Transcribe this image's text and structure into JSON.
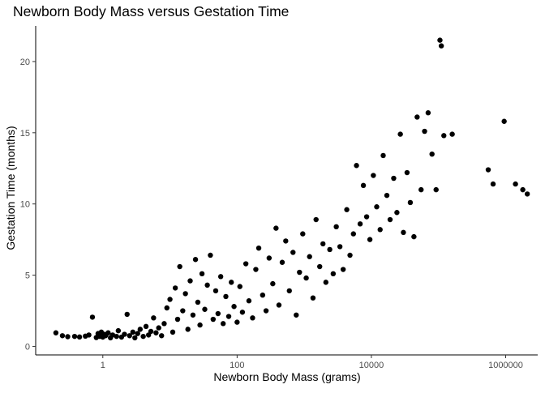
{
  "chart_data": {
    "type": "scatter",
    "title": "Newborn Body Mass versus Gestation Time",
    "xlabel": "Newborn Body Mass (grams)",
    "ylabel": "Gestation Time (months)",
    "x_scale": "log10",
    "xlim": [
      0.1,
      3000000
    ],
    "ylim": [
      -0.6,
      22.5
    ],
    "x_ticks": [
      1,
      100,
      10000,
      1000000
    ],
    "x_tick_labels": [
      "1",
      "100",
      "10000",
      "1000000"
    ],
    "y_ticks": [
      0,
      5,
      10,
      15,
      20
    ],
    "y_tick_labels": [
      "0",
      "5",
      "10",
      "15",
      "20"
    ],
    "grid": false,
    "legend": "none",
    "point_color": "#000000",
    "points": [
      {
        "x": 0.2,
        "y": 0.95
      },
      {
        "x": 0.25,
        "y": 0.75
      },
      {
        "x": 0.3,
        "y": 0.68
      },
      {
        "x": 0.38,
        "y": 0.7
      },
      {
        "x": 0.45,
        "y": 0.66
      },
      {
        "x": 0.55,
        "y": 0.72
      },
      {
        "x": 0.62,
        "y": 0.8
      },
      {
        "x": 0.7,
        "y": 2.05
      },
      {
        "x": 0.8,
        "y": 0.62
      },
      {
        "x": 0.85,
        "y": 0.9
      },
      {
        "x": 0.9,
        "y": 0.7
      },
      {
        "x": 0.95,
        "y": 1.0
      },
      {
        "x": 1.0,
        "y": 0.65
      },
      {
        "x": 1.05,
        "y": 0.85
      },
      {
        "x": 1.1,
        "y": 0.75
      },
      {
        "x": 1.2,
        "y": 0.95
      },
      {
        "x": 1.3,
        "y": 0.6
      },
      {
        "x": 1.4,
        "y": 0.8
      },
      {
        "x": 1.6,
        "y": 0.7
      },
      {
        "x": 1.7,
        "y": 1.1
      },
      {
        "x": 1.9,
        "y": 0.65
      },
      {
        "x": 2.1,
        "y": 0.85
      },
      {
        "x": 2.3,
        "y": 2.25
      },
      {
        "x": 2.5,
        "y": 0.75
      },
      {
        "x": 2.8,
        "y": 1.0
      },
      {
        "x": 3.0,
        "y": 0.6
      },
      {
        "x": 3.3,
        "y": 0.9
      },
      {
        "x": 3.6,
        "y": 1.2
      },
      {
        "x": 4.0,
        "y": 0.7
      },
      {
        "x": 4.4,
        "y": 1.4
      },
      {
        "x": 4.8,
        "y": 0.8
      },
      {
        "x": 5.2,
        "y": 1.05
      },
      {
        "x": 5.7,
        "y": 2.0
      },
      {
        "x": 6.2,
        "y": 0.95
      },
      {
        "x": 6.8,
        "y": 1.3
      },
      {
        "x": 7.5,
        "y": 0.75
      },
      {
        "x": 8.2,
        "y": 1.6
      },
      {
        "x": 9.0,
        "y": 2.7
      },
      {
        "x": 10.0,
        "y": 3.3
      },
      {
        "x": 11.0,
        "y": 1.0
      },
      {
        "x": 12.0,
        "y": 4.1
      },
      {
        "x": 13.0,
        "y": 1.9
      },
      {
        "x": 14.0,
        "y": 5.6
      },
      {
        "x": 15.5,
        "y": 2.5
      },
      {
        "x": 17.0,
        "y": 3.7
      },
      {
        "x": 18.5,
        "y": 1.2
      },
      {
        "x": 20.0,
        "y": 4.6
      },
      {
        "x": 22.0,
        "y": 2.2
      },
      {
        "x": 24.0,
        "y": 6.1
      },
      {
        "x": 26.0,
        "y": 3.1
      },
      {
        "x": 28.0,
        "y": 1.5
      },
      {
        "x": 30.0,
        "y": 5.1
      },
      {
        "x": 33.0,
        "y": 2.6
      },
      {
        "x": 36.0,
        "y": 4.3
      },
      {
        "x": 40.0,
        "y": 6.4
      },
      {
        "x": 44.0,
        "y": 1.9
      },
      {
        "x": 48.0,
        "y": 3.9
      },
      {
        "x": 52.0,
        "y": 2.3
      },
      {
        "x": 57.0,
        "y": 4.9
      },
      {
        "x": 62.0,
        "y": 1.6
      },
      {
        "x": 68.0,
        "y": 3.5
      },
      {
        "x": 75.0,
        "y": 2.1
      },
      {
        "x": 82.0,
        "y": 4.5
      },
      {
        "x": 90.0,
        "y": 2.8
      },
      {
        "x": 100.0,
        "y": 1.7
      },
      {
        "x": 110.0,
        "y": 4.2
      },
      {
        "x": 120.0,
        "y": 2.4
      },
      {
        "x": 135.0,
        "y": 5.8
      },
      {
        "x": 150.0,
        "y": 3.2
      },
      {
        "x": 170.0,
        "y": 2.0
      },
      {
        "x": 190.0,
        "y": 5.4
      },
      {
        "x": 210.0,
        "y": 6.9
      },
      {
        "x": 240.0,
        "y": 3.6
      },
      {
        "x": 270.0,
        "y": 2.5
      },
      {
        "x": 300.0,
        "y": 6.2
      },
      {
        "x": 340.0,
        "y": 4.4
      },
      {
        "x": 380.0,
        "y": 8.3
      },
      {
        "x": 420.0,
        "y": 2.9
      },
      {
        "x": 470.0,
        "y": 5.9
      },
      {
        "x": 530.0,
        "y": 7.4
      },
      {
        "x": 600.0,
        "y": 3.9
      },
      {
        "x": 680.0,
        "y": 6.6
      },
      {
        "x": 760.0,
        "y": 2.2
      },
      {
        "x": 850.0,
        "y": 5.2
      },
      {
        "x": 950.0,
        "y": 7.9
      },
      {
        "x": 1070.0,
        "y": 4.8
      },
      {
        "x": 1200.0,
        "y": 6.3
      },
      {
        "x": 1350.0,
        "y": 3.4
      },
      {
        "x": 1500.0,
        "y": 8.9
      },
      {
        "x": 1700.0,
        "y": 5.6
      },
      {
        "x": 1900.0,
        "y": 7.2
      },
      {
        "x": 2100.0,
        "y": 4.5
      },
      {
        "x": 2400.0,
        "y": 6.8
      },
      {
        "x": 2700.0,
        "y": 5.1
      },
      {
        "x": 3000.0,
        "y": 8.4
      },
      {
        "x": 3400.0,
        "y": 7.0
      },
      {
        "x": 3800.0,
        "y": 5.4
      },
      {
        "x": 4300.0,
        "y": 9.6
      },
      {
        "x": 4800.0,
        "y": 6.4
      },
      {
        "x": 5400.0,
        "y": 7.9
      },
      {
        "x": 6000.0,
        "y": 12.7
      },
      {
        "x": 6800.0,
        "y": 8.6
      },
      {
        "x": 7600.0,
        "y": 11.3
      },
      {
        "x": 8500.0,
        "y": 9.1
      },
      {
        "x": 9500.0,
        "y": 7.5
      },
      {
        "x": 10700.0,
        "y": 12.0
      },
      {
        "x": 12000.0,
        "y": 9.8
      },
      {
        "x": 13500.0,
        "y": 8.2
      },
      {
        "x": 15000.0,
        "y": 13.4
      },
      {
        "x": 17000.0,
        "y": 10.6
      },
      {
        "x": 19000.0,
        "y": 8.9
      },
      {
        "x": 21500.0,
        "y": 11.8
      },
      {
        "x": 24000.0,
        "y": 9.4
      },
      {
        "x": 27000.0,
        "y": 14.9
      },
      {
        "x": 30000.0,
        "y": 8.0
      },
      {
        "x": 34000.0,
        "y": 12.2
      },
      {
        "x": 38000.0,
        "y": 10.1
      },
      {
        "x": 43000.0,
        "y": 7.7
      },
      {
        "x": 48000.0,
        "y": 16.1
      },
      {
        "x": 55000.0,
        "y": 11.0
      },
      {
        "x": 62000.0,
        "y": 15.1
      },
      {
        "x": 70000.0,
        "y": 16.4
      },
      {
        "x": 80000.0,
        "y": 13.5
      },
      {
        "x": 92000.0,
        "y": 11.0
      },
      {
        "x": 105000.0,
        "y": 21.5
      },
      {
        "x": 110000.0,
        "y": 21.1
      },
      {
        "x": 120000.0,
        "y": 14.8
      },
      {
        "x": 160000.0,
        "y": 14.9
      },
      {
        "x": 550000.0,
        "y": 12.4
      },
      {
        "x": 650000.0,
        "y": 11.4
      },
      {
        "x": 950000.0,
        "y": 15.8
      },
      {
        "x": 1400000.0,
        "y": 11.4
      },
      {
        "x": 1800000.0,
        "y": 11.0
      },
      {
        "x": 2100000.0,
        "y": 10.7
      }
    ]
  }
}
